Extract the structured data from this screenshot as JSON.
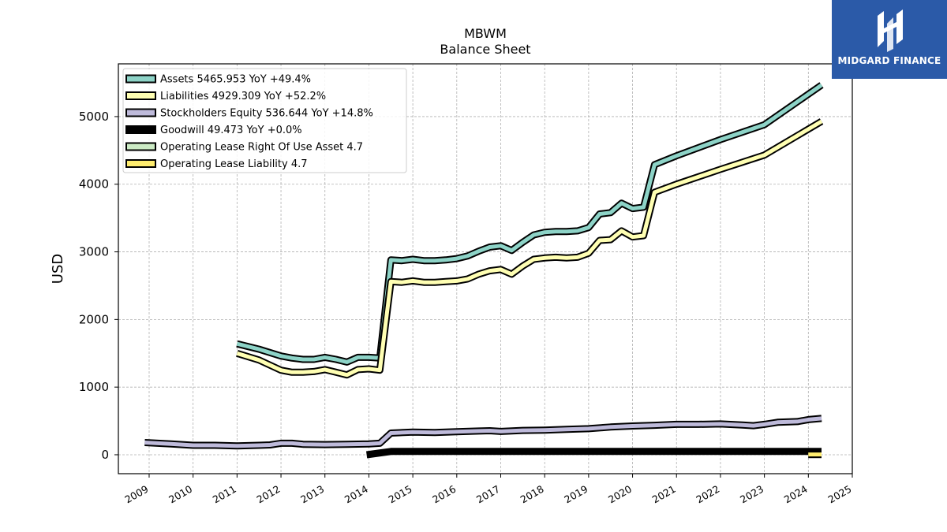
{
  "brand": {
    "name": "MIDGARD FINANCE",
    "color": "#2b5aa8"
  },
  "chart_data": {
    "type": "line",
    "title": "MBWM",
    "subtitle": "Balance  Sheet",
    "ylabel": "USD",
    "xlabel": "",
    "xlim": [
      2008.3,
      2025.0
    ],
    "ylim": [
      -280,
      5780
    ],
    "x_ticks": [
      "2009",
      "2010",
      "2011",
      "2012",
      "2013",
      "2014",
      "2015",
      "2016",
      "2017",
      "2018",
      "2019",
      "2020",
      "2021",
      "2022",
      "2023",
      "2024",
      "2025"
    ],
    "y_ticks": [
      0,
      1000,
      2000,
      3000,
      4000,
      5000
    ],
    "grid": true,
    "legend_position": "top-left",
    "series": [
      {
        "name": "Assets  5465.953 YoY +49.4%",
        "color": "#8dd3c7",
        "points": [
          [
            2011.0,
            1640
          ],
          [
            2011.5,
            1560
          ],
          [
            2012.0,
            1460
          ],
          [
            2012.25,
            1430
          ],
          [
            2012.5,
            1410
          ],
          [
            2012.75,
            1410
          ],
          [
            2013.0,
            1440
          ],
          [
            2013.25,
            1410
          ],
          [
            2013.5,
            1370
          ],
          [
            2013.75,
            1440
          ],
          [
            2014.0,
            1440
          ],
          [
            2014.25,
            1430
          ],
          [
            2014.5,
            2880
          ],
          [
            2014.75,
            2870
          ],
          [
            2015.0,
            2890
          ],
          [
            2015.25,
            2870
          ],
          [
            2015.5,
            2870
          ],
          [
            2015.75,
            2880
          ],
          [
            2016.0,
            2900
          ],
          [
            2016.25,
            2940
          ],
          [
            2016.5,
            3010
          ],
          [
            2016.75,
            3070
          ],
          [
            2017.0,
            3090
          ],
          [
            2017.25,
            3020
          ],
          [
            2017.5,
            3140
          ],
          [
            2017.75,
            3250
          ],
          [
            2018.0,
            3290
          ],
          [
            2018.25,
            3300
          ],
          [
            2018.5,
            3300
          ],
          [
            2018.75,
            3310
          ],
          [
            2019.0,
            3360
          ],
          [
            2019.25,
            3560
          ],
          [
            2019.5,
            3580
          ],
          [
            2019.75,
            3720
          ],
          [
            2020.0,
            3640
          ],
          [
            2020.25,
            3660
          ],
          [
            2020.5,
            4290
          ],
          [
            2021.0,
            4420
          ],
          [
            2022.0,
            4660
          ],
          [
            2023.0,
            4880
          ],
          [
            2024.3,
            5466
          ]
        ]
      },
      {
        "name": "Liabilities  4929.309 YoY +52.2%",
        "color": "#ffffb3",
        "points": [
          [
            2011.0,
            1500
          ],
          [
            2011.5,
            1400
          ],
          [
            2012.0,
            1250
          ],
          [
            2012.25,
            1220
          ],
          [
            2012.5,
            1220
          ],
          [
            2012.75,
            1230
          ],
          [
            2013.0,
            1260
          ],
          [
            2013.25,
            1220
          ],
          [
            2013.5,
            1180
          ],
          [
            2013.75,
            1260
          ],
          [
            2014.0,
            1270
          ],
          [
            2014.25,
            1250
          ],
          [
            2014.5,
            2560
          ],
          [
            2014.75,
            2550
          ],
          [
            2015.0,
            2570
          ],
          [
            2015.25,
            2550
          ],
          [
            2015.5,
            2550
          ],
          [
            2015.75,
            2560
          ],
          [
            2016.0,
            2570
          ],
          [
            2016.25,
            2600
          ],
          [
            2016.5,
            2670
          ],
          [
            2016.75,
            2720
          ],
          [
            2017.0,
            2740
          ],
          [
            2017.25,
            2670
          ],
          [
            2017.5,
            2790
          ],
          [
            2017.75,
            2890
          ],
          [
            2018.0,
            2910
          ],
          [
            2018.25,
            2920
          ],
          [
            2018.5,
            2910
          ],
          [
            2018.75,
            2920
          ],
          [
            2019.0,
            2980
          ],
          [
            2019.25,
            3170
          ],
          [
            2019.5,
            3180
          ],
          [
            2019.75,
            3310
          ],
          [
            2020.0,
            3220
          ],
          [
            2020.25,
            3240
          ],
          [
            2020.5,
            3880
          ],
          [
            2021.0,
            4000
          ],
          [
            2022.0,
            4220
          ],
          [
            2023.0,
            4430
          ],
          [
            2024.3,
            4929
          ]
        ]
      },
      {
        "name": "Stockholders Equity  536.644 YoY +14.8%",
        "color": "#bebada",
        "points": [
          [
            2008.9,
            180
          ],
          [
            2009.5,
            160
          ],
          [
            2010.0,
            140
          ],
          [
            2010.5,
            140
          ],
          [
            2011.0,
            130
          ],
          [
            2011.5,
            140
          ],
          [
            2011.75,
            145
          ],
          [
            2012.0,
            170
          ],
          [
            2012.25,
            170
          ],
          [
            2012.5,
            155
          ],
          [
            2013.0,
            150
          ],
          [
            2013.5,
            155
          ],
          [
            2014.0,
            160
          ],
          [
            2014.25,
            170
          ],
          [
            2014.5,
            320
          ],
          [
            2015.0,
            335
          ],
          [
            2015.5,
            330
          ],
          [
            2016.0,
            340
          ],
          [
            2016.5,
            350
          ],
          [
            2016.75,
            355
          ],
          [
            2017.0,
            345
          ],
          [
            2017.5,
            360
          ],
          [
            2018.0,
            365
          ],
          [
            2018.5,
            375
          ],
          [
            2019.0,
            385
          ],
          [
            2019.5,
            410
          ],
          [
            2020.0,
            425
          ],
          [
            2020.5,
            435
          ],
          [
            2021.0,
            450
          ],
          [
            2021.5,
            450
          ],
          [
            2022.0,
            455
          ],
          [
            2022.5,
            440
          ],
          [
            2022.75,
            430
          ],
          [
            2023.0,
            450
          ],
          [
            2023.3,
            480
          ],
          [
            2023.75,
            490
          ],
          [
            2024.0,
            520
          ],
          [
            2024.3,
            537
          ]
        ]
      },
      {
        "name": "Goodwill  49.473 YoY +0.0%",
        "color": "#000000",
        "points": [
          [
            2013.95,
            0
          ],
          [
            2014.5,
            49
          ],
          [
            2015.0,
            49
          ],
          [
            2016.0,
            49
          ],
          [
            2017.0,
            49
          ],
          [
            2018.0,
            49
          ],
          [
            2019.0,
            49
          ],
          [
            2020.0,
            49
          ],
          [
            2021.0,
            49
          ],
          [
            2022.0,
            49
          ],
          [
            2023.0,
            49
          ],
          [
            2024.0,
            49
          ],
          [
            2024.3,
            49
          ]
        ]
      },
      {
        "name": "Operating Lease Right Of Use Asset  4.7",
        "color": "#ccebc5",
        "points": [
          [
            2024.0,
            4.7
          ],
          [
            2024.3,
            4.7
          ]
        ]
      },
      {
        "name": "Operating Lease Liability  4.7",
        "color": "#ffed6f",
        "points": [
          [
            2024.0,
            4.7
          ],
          [
            2024.3,
            4.7
          ]
        ]
      }
    ]
  }
}
